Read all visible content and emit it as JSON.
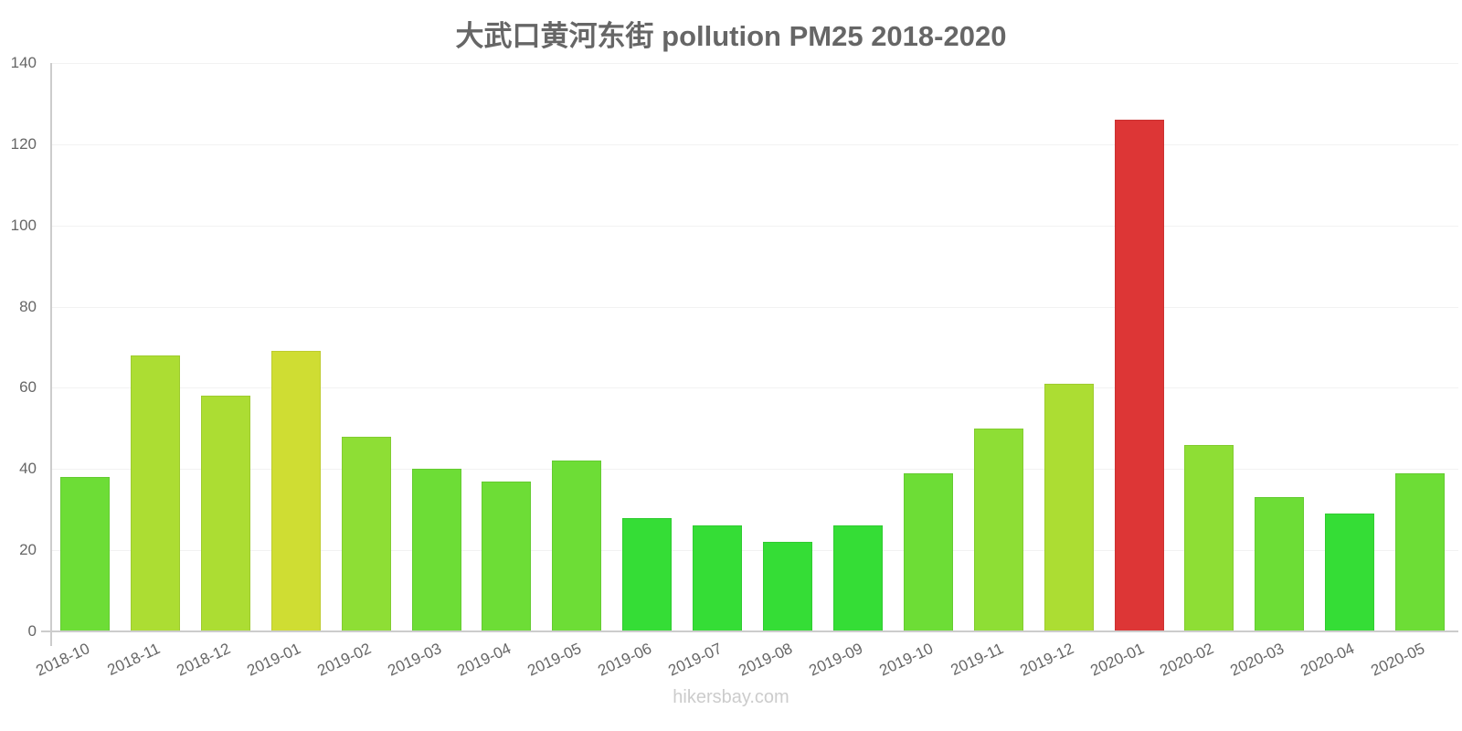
{
  "title": "大武口黄河东街 pollution PM25 2018-2020",
  "footer": "hikersbay.com",
  "y_ticks": [
    "0",
    "20",
    "40",
    "60",
    "80",
    "100",
    "120",
    "140"
  ],
  "chart_data": {
    "type": "bar",
    "title": "大武口黄河东街 pollution PM25 2018-2020",
    "xlabel": "",
    "ylabel": "",
    "ylim": [
      0,
      140
    ],
    "grid": true,
    "legend": "none",
    "categories": [
      "2018-10",
      "2018-11",
      "2018-12",
      "2019-01",
      "2019-02",
      "2019-03",
      "2019-04",
      "2019-05",
      "2019-06",
      "2019-07",
      "2019-08",
      "2019-09",
      "2019-10",
      "2019-11",
      "2019-12",
      "2020-01",
      "2020-02",
      "2020-03",
      "2020-04",
      "2020-05"
    ],
    "values": [
      38,
      68,
      58,
      69,
      48,
      40,
      37,
      42,
      28,
      26,
      22,
      26,
      39,
      50,
      61,
      126,
      46,
      33,
      29,
      39
    ],
    "colors": [
      "#6ddd36",
      "#acdd33",
      "#acdd33",
      "#cfdd33",
      "#8ede35",
      "#6ddd36",
      "#6ddd36",
      "#6ddd36",
      "#35dd36",
      "#35dd36",
      "#35dd36",
      "#35dd36",
      "#6ddd36",
      "#8ede35",
      "#acdd33",
      "#dd3636",
      "#8ede35",
      "#6ddd36",
      "#35dd36",
      "#6ddd36"
    ]
  }
}
